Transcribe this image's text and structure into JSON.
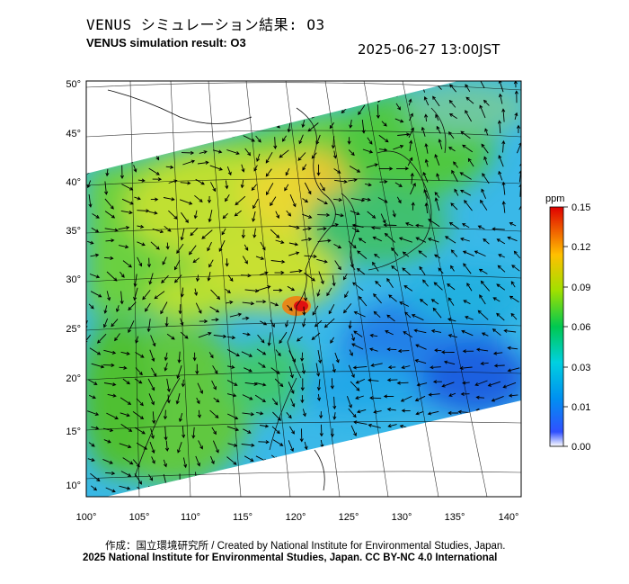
{
  "header": {
    "title_jp": "VENUS シミュレーション結果: O3",
    "title_en": "VENUS simulation result: O3",
    "timestamp": "2025-06-27 13:00JST"
  },
  "axes": {
    "lat_labels": [
      "50°",
      "45°",
      "40°",
      "35°",
      "30°",
      "25°",
      "20°",
      "15°",
      "10°"
    ],
    "lon_labels": [
      "100°",
      "105°",
      "110°",
      "115°",
      "120°",
      "125°",
      "130°",
      "135°",
      "140°"
    ]
  },
  "colorbar": {
    "unit": "ppm",
    "ticks": [
      "0.15",
      "0.12",
      "0.09",
      "0.06",
      "0.03",
      "0.01",
      "0.00"
    ],
    "colors": [
      "#ffffff",
      "#3050ff",
      "#00c8f0",
      "#00d060",
      "#f0e000",
      "#ff8000",
      "#e00000"
    ]
  },
  "footer": {
    "credit": "作成：国立環境研究所 / Created by National Institute for Environmental Studies, Japan.",
    "copyright": "2025 National Institute for Environmental Studies, Japan. CC BY-NC 4.0 International"
  }
}
